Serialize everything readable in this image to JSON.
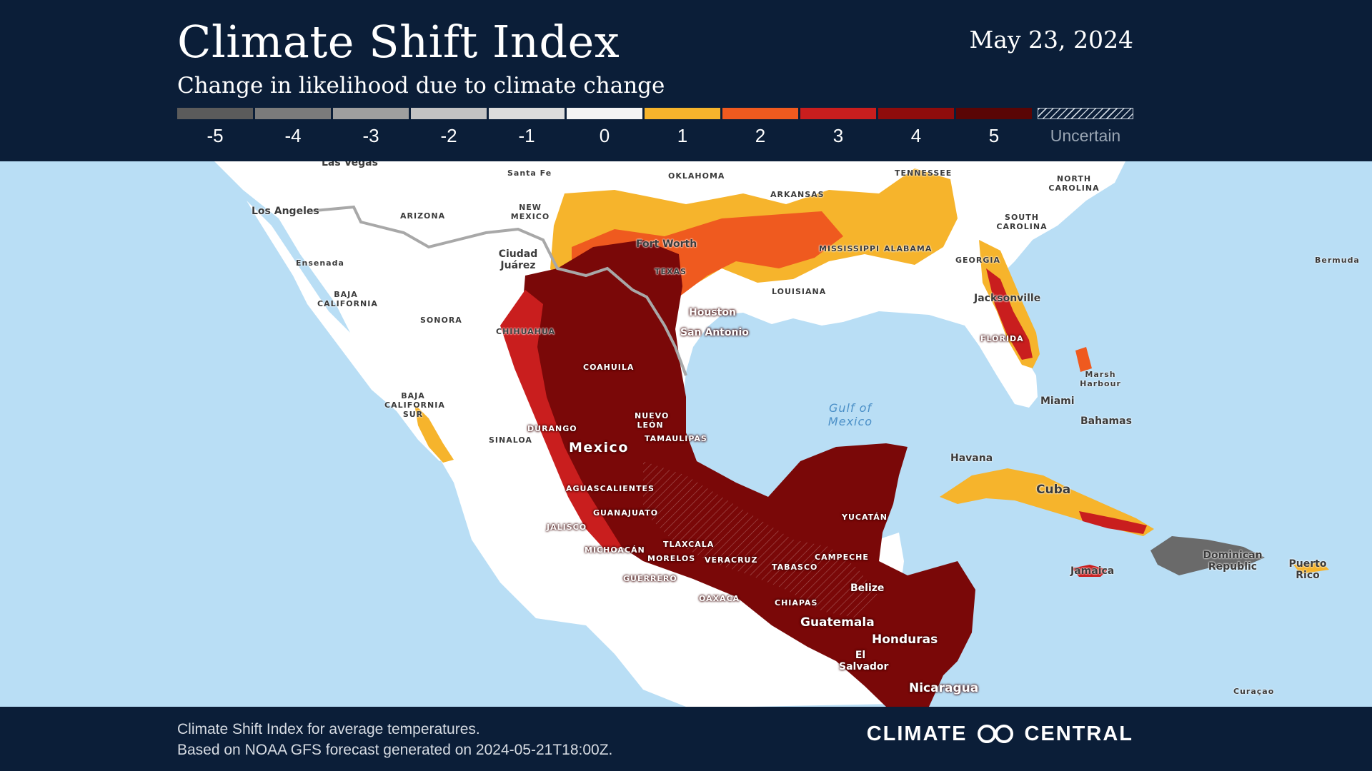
{
  "header": {
    "title": "Climate Shift Index",
    "subtitle": "Change in likelihood due to climate change",
    "date": "May 23, 2024"
  },
  "legend": {
    "items": [
      {
        "label": "-5",
        "color": "#5b5b5b"
      },
      {
        "label": "-4",
        "color": "#7b7b7b"
      },
      {
        "label": "-3",
        "color": "#9f9f9f"
      },
      {
        "label": "-2",
        "color": "#c3c3c3"
      },
      {
        "label": "-1",
        "color": "#dcdcdc"
      },
      {
        "label": "0",
        "color": "#f4f4f4"
      },
      {
        "label": "1",
        "color": "#f6b42c"
      },
      {
        "label": "2",
        "color": "#ef5a1f"
      },
      {
        "label": "3",
        "color": "#c91e1e"
      },
      {
        "label": "4",
        "color": "#8f0c0c"
      },
      {
        "label": "5",
        "color": "#5a0505"
      }
    ],
    "uncertain_label": "Uncertain"
  },
  "map": {
    "colors": {
      "ocean": "#b9def5",
      "land_neutral": "#ffffff",
      "border": "#a8a8a8"
    },
    "labels": {
      "las_vegas": "Las Vegas",
      "santa_fe": "Santa Fe",
      "oklahoma": "OKLAHOMA",
      "tennessee": "TENNESSEE",
      "north_carolina": "NORTH CAROLINA",
      "los_angeles": "Los Angeles",
      "arizona": "ARIZONA",
      "new_mexico": "NEW MEXICO",
      "arkansas": "ARKANSAS",
      "south_carolina": "SOUTH CAROLINA",
      "fort_worth": "Fort Worth",
      "mississippi": "MISSISSIPPI",
      "alabama": "ALABAMA",
      "georgia": "GEORGIA",
      "bermuda": "Bermuda",
      "ensenada": "Ensenada",
      "ciudad_juarez": "Ciudad Juárez",
      "texas": "TEXAS",
      "louisiana": "LOUISIANA",
      "jacksonville": "Jacksonville",
      "baja_california": "BAJA CALIFORNIA",
      "houston": "Houston",
      "san_antonio": "San Antonio",
      "sonora": "SONORA",
      "chihuahua": "CHIHUAHUA",
      "florida": "FLORIDA",
      "coahuila": "COAHUILA",
      "marsh_harbour": "Marsh Harbour",
      "miami": "Miami",
      "gulf_of_mexico": "Gulf of Mexico",
      "baja_california_sur": "BAJA CALIFORNIA SUR",
      "nuevo_leon": "NUEVO LEÓN",
      "bahamas": "Bahamas",
      "durango": "DURANGO",
      "sinaloa": "SINALOA",
      "tamaulipas": "TAMAULIPAS",
      "mexico": "Mexico",
      "havana": "Havana",
      "aguascalientes": "AGUASCALIENTES",
      "cuba": "Cuba",
      "guanajuato": "GUANAJUATO",
      "yucatan": "YUCATÁN",
      "jalisco": "JALISCO",
      "tlaxcala": "TLAXCALA",
      "michoacan": "MICHOACÁN",
      "campeche": "CAMPECHE",
      "morelos": "MORELOS",
      "veracruz": "VERACRUZ",
      "dominican_republic": "Dominican Republic",
      "puerto_rico": "Puerto Rico",
      "tabasco": "TABASCO",
      "jamaica": "Jamaica",
      "guerrero": "GUERRERO",
      "belize": "Belize",
      "oaxaca": "OAXACA",
      "chiapas": "CHIAPAS",
      "guatemala": "Guatemala",
      "honduras": "Honduras",
      "el_salvador": "El Salvador",
      "nicaragua": "Nicaragua",
      "curacao": "Curaçao"
    }
  },
  "footer": {
    "line1": "Climate Shift Index for average temperatures.",
    "line2": "Based on NOAA GFS forecast generated on 2024-05-21T18:00Z.",
    "brand_left": "CLIMATE",
    "brand_right": "CENTRAL"
  }
}
